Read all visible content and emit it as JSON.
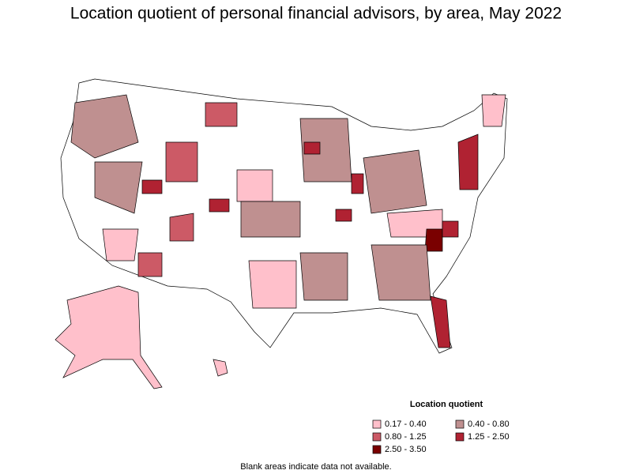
{
  "title": "Location quotient of personal financial advisors, by area, May 2022",
  "legend": {
    "title": "Location quotient",
    "items": [
      {
        "label": "0.17 - 0.40",
        "color": "#ffc0cb"
      },
      {
        "label": "0.40 - 0.80",
        "color": "#bf9090"
      },
      {
        "label": "0.80 - 1.25",
        "color": "#cc5a66"
      },
      {
        "label": "1.25 - 2.50",
        "color": "#b02232"
      },
      {
        "label": "2.50 - 3.50",
        "color": "#7a0000"
      }
    ]
  },
  "note": "Blank areas indicate data not available."
}
